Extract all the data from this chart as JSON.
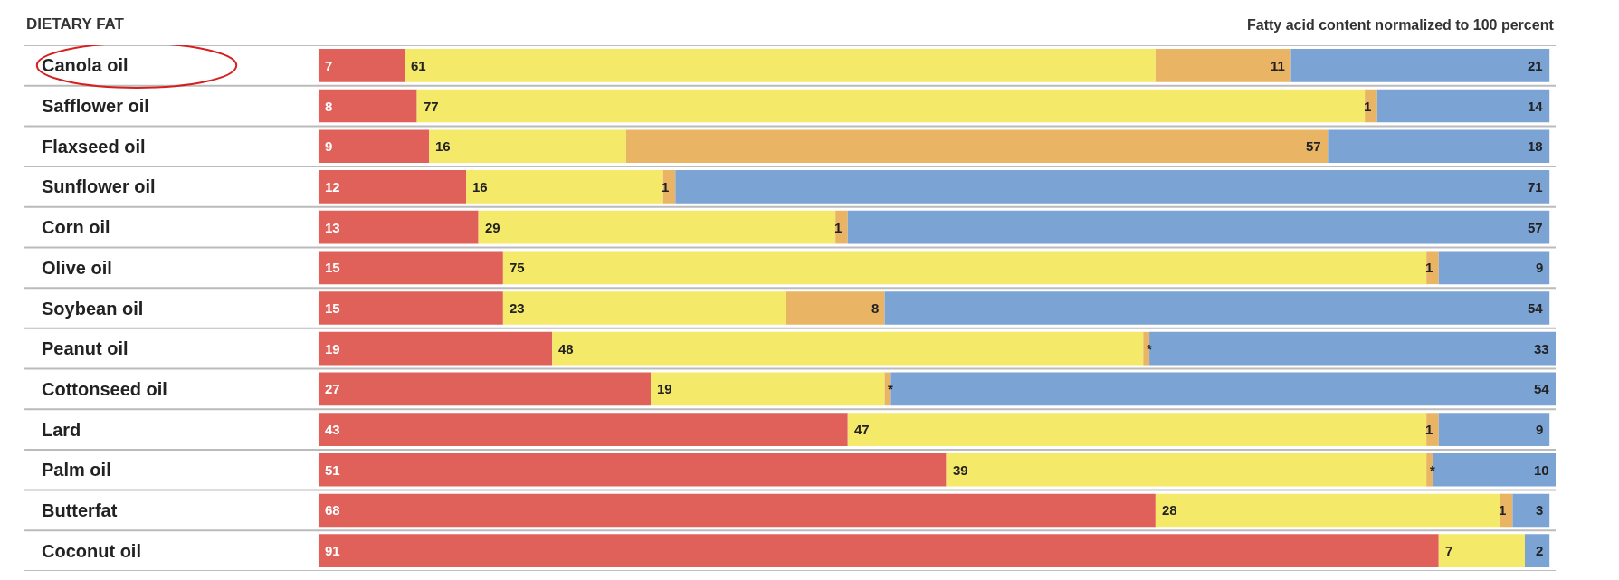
{
  "chart_data": {
    "type": "bar",
    "orientation": "horizontal",
    "stacked": true,
    "title": "DIETARY FAT",
    "subtitle": "Fatty acid content normalized to 100 percent",
    "categories": [
      "Canola oil",
      "Safflower oil",
      "Flaxseed oil",
      "Sunflower oil",
      "Corn oil",
      "Olive oil",
      "Soybean oil",
      "Peanut oil",
      "Cottonseed oil",
      "Lard",
      "Palm oil",
      "Butterfat",
      "Coconut oil"
    ],
    "series": [
      {
        "color": "#e0605a",
        "values": [
          7,
          8,
          9,
          12,
          13,
          15,
          15,
          19,
          27,
          43,
          51,
          68,
          91
        ],
        "value_labels": [
          "7",
          "8",
          "9",
          "12",
          "13",
          "15",
          "15",
          "19",
          "27",
          "43",
          "51",
          "68",
          "91"
        ]
      },
      {
        "color": "#f5e96a",
        "values": [
          61,
          77,
          16,
          16,
          29,
          75,
          23,
          48,
          19,
          47,
          39,
          28,
          7
        ],
        "value_labels": [
          "61",
          "77",
          "16",
          "16",
          "29",
          "75",
          "23",
          "48",
          "19",
          "47",
          "39",
          "28",
          "7"
        ]
      },
      {
        "color": "#e9b565",
        "values": [
          11,
          1,
          57,
          1,
          1,
          1,
          8,
          0.5,
          0.5,
          1,
          0.5,
          1,
          0
        ],
        "value_labels": [
          "11",
          "1",
          "57",
          "1",
          "1",
          "1",
          "8",
          "*",
          "*",
          "1",
          "*",
          "1",
          null
        ]
      },
      {
        "color": "#7ba3d4",
        "values": [
          21,
          14,
          18,
          71,
          57,
          9,
          54,
          33,
          54,
          9,
          10,
          3,
          2
        ],
        "value_labels": [
          "21",
          "14",
          "18",
          "71",
          "57",
          "9",
          "54",
          "33",
          "54",
          "9",
          "10",
          "3",
          "2"
        ]
      }
    ],
    "xlim": [
      0,
      100.5
    ],
    "tick_labels": "y"
  }
}
